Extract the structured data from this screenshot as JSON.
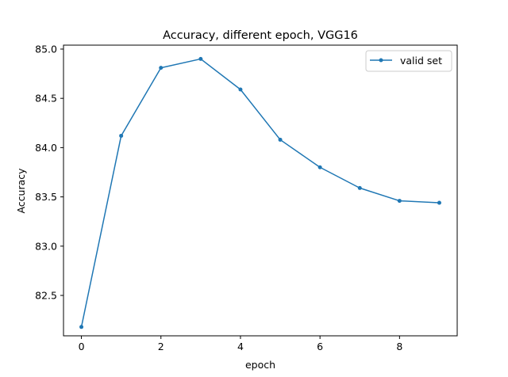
{
  "chart_data": {
    "type": "line",
    "title": "Accuracy, different epoch, VGG16",
    "xlabel": "epoch",
    "ylabel": "Accuracy",
    "xlim": [
      -0.45,
      9.45
    ],
    "ylim": [
      82.09,
      85.04
    ],
    "xticks": [
      0,
      2,
      4,
      6,
      8
    ],
    "yticks": [
      82.5,
      83.0,
      83.5,
      84.0,
      84.5,
      85.0
    ],
    "ytick_labels": [
      "82.5",
      "83.0",
      "83.5",
      "84.0",
      "84.5",
      "85.0"
    ],
    "grid": false,
    "legend_position": "top-right",
    "series": [
      {
        "name": "valid set",
        "color": "#1f77b4",
        "marker": "dot",
        "x": [
          0,
          1,
          2,
          3,
          4,
          5,
          6,
          7,
          8,
          9
        ],
        "y": [
          82.18,
          84.12,
          84.81,
          84.9,
          84.59,
          84.08,
          83.8,
          83.59,
          83.46,
          83.44
        ]
      }
    ]
  }
}
